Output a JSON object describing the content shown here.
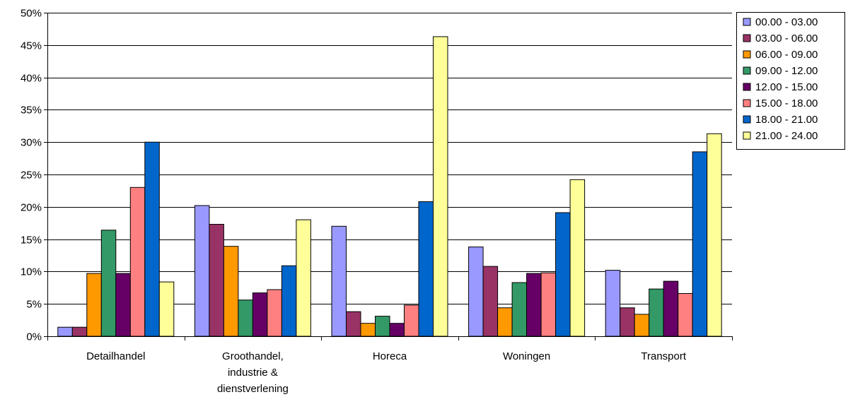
{
  "chart_data": {
    "type": "bar",
    "title": "",
    "xlabel": "",
    "ylabel": "",
    "ylim": [
      0,
      50
    ],
    "y_ticks": [
      "0%",
      "5%",
      "10%",
      "15%",
      "20%",
      "25%",
      "30%",
      "35%",
      "40%",
      "45%",
      "50%"
    ],
    "grid": true,
    "legend_position": "right",
    "categories": [
      [
        "Detailhandel"
      ],
      [
        "Groothandel,",
        "industrie &",
        "dienstverlening"
      ],
      [
        "Horeca"
      ],
      [
        "Woningen"
      ],
      [
        "Transport"
      ]
    ],
    "series": [
      {
        "name": "00.00 - 03.00",
        "color": "#9999ff",
        "values": [
          1.4,
          20.2,
          17.0,
          13.8,
          10.2
        ]
      },
      {
        "name": "03.00 - 06.00",
        "color": "#993366",
        "values": [
          1.4,
          17.3,
          3.8,
          10.8,
          4.4
        ]
      },
      {
        "name": "06.00 - 09.00",
        "color": "#ff9900",
        "values": [
          9.7,
          13.9,
          2.0,
          4.4,
          3.4
        ]
      },
      {
        "name": "09.00 - 12.00",
        "color": "#339966",
        "values": [
          16.4,
          5.6,
          3.1,
          8.3,
          7.3
        ]
      },
      {
        "name": "12.00 - 15.00",
        "color": "#660066",
        "values": [
          9.7,
          6.7,
          2.0,
          9.7,
          8.5
        ]
      },
      {
        "name": "15.00 - 18.00",
        "color": "#ff8080",
        "values": [
          23.0,
          7.2,
          4.8,
          9.8,
          6.6
        ]
      },
      {
        "name": "18.00 - 21.00",
        "color": "#0066cc",
        "values": [
          30.0,
          10.9,
          20.8,
          19.1,
          28.5
        ]
      },
      {
        "name": "21.00 - 24.00",
        "color": "#ffff99",
        "values": [
          8.4,
          18.0,
          46.3,
          24.2,
          31.3
        ]
      }
    ]
  }
}
